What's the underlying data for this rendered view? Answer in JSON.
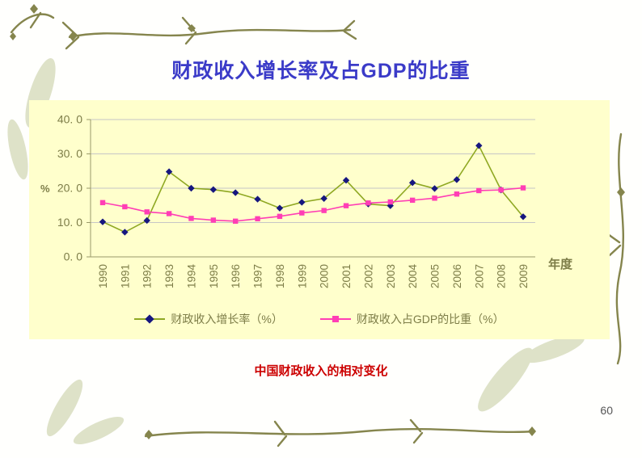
{
  "slide": {
    "title": "财政收入增长率及占GDP的比重",
    "caption": "中国财政收入的相对变化",
    "page_number": "60"
  },
  "chart_data": {
    "type": "line",
    "title": "财政收入增长率及占GDP的比重",
    "xlabel": "年度",
    "ylabel": "%",
    "ylim": [
      0,
      40
    ],
    "yticks": [
      "0. 0",
      "10. 0",
      "20. 0",
      "30. 0",
      "40. 0"
    ],
    "grid": true,
    "legend_position": "bottom",
    "plot_background": "#ffffcc",
    "categories": [
      "1990",
      "1991",
      "1992",
      "1993",
      "1994",
      "1995",
      "1996",
      "1997",
      "1998",
      "1999",
      "2000",
      "2001",
      "2002",
      "2003",
      "2004",
      "2005",
      "2006",
      "2007",
      "2008",
      "2009"
    ],
    "series": [
      {
        "name": "财政收入增长率（%）",
        "marker": "diamond",
        "line_color": "#8fa822",
        "marker_color": "#16167f",
        "values": [
          10.2,
          7.2,
          10.6,
          24.8,
          20.0,
          19.6,
          18.7,
          16.8,
          14.2,
          15.9,
          17.0,
          22.3,
          15.4,
          14.9,
          21.6,
          19.9,
          22.5,
          32.4,
          19.5,
          11.7
        ]
      },
      {
        "name": "财政收入占GDP的比重（%）",
        "marker": "square",
        "line_color": "#ff3eb5",
        "marker_color": "#ff3eb5",
        "values": [
          15.8,
          14.6,
          13.1,
          12.6,
          11.2,
          10.7,
          10.4,
          11.1,
          11.8,
          12.8,
          13.5,
          14.9,
          15.7,
          16.0,
          16.5,
          17.1,
          18.3,
          19.3,
          19.5,
          20.1
        ]
      }
    ]
  },
  "colors": {
    "title": "#3b3bc8",
    "caption": "#cc0000",
    "axis_text": "#7d7d48",
    "axis_line": "#9a9a6a",
    "gridline": "#c6c6c6",
    "chart_bg": "#ffffcc",
    "page_number": "#555555",
    "decoration": "#85854d",
    "decoration_pale": "#dee2c8"
  }
}
